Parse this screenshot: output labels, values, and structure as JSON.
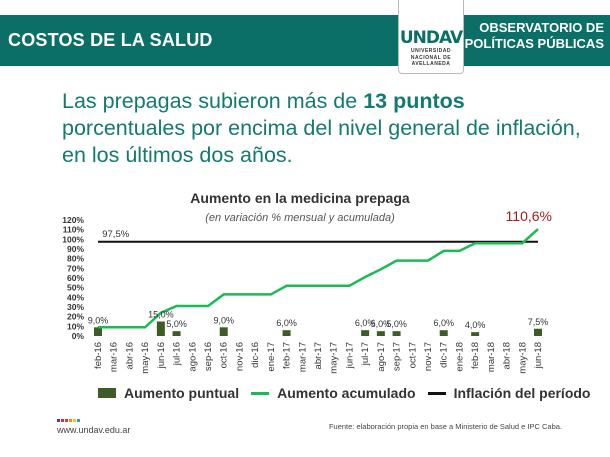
{
  "header": {
    "section": "COSTOS DE LA SALUD",
    "observatory_line1": "OBSERVATORIO DE",
    "observatory_line2": "POLÍTICAS PÚBLICAS",
    "logo_mark": "UNDAV",
    "logo_sub1": "UNIVERSIDAD",
    "logo_sub2": "NACIONAL DE",
    "logo_sub3": "AVELLANEDA"
  },
  "headline": {
    "before": "Las prepagas subieron más de ",
    "bold": "13 puntos",
    "after": " porcentuales por encima del nivel general de inflación, en los últimos dos años."
  },
  "chart_data": {
    "type": "bar+line",
    "title": "Aumento en la medicina prepaga",
    "subtitle": "(en variación % mensual y acumulada)",
    "categories": [
      "feb-16",
      "mar-16",
      "abr-16",
      "may-16",
      "jun-16",
      "jul-16",
      "ago-16",
      "sep-16",
      "oct-16",
      "nov-16",
      "dic-16",
      "ene-17",
      "feb-17",
      "mar-17",
      "abr-17",
      "may-17",
      "jun-17",
      "jul-17",
      "ago-17",
      "sep-17",
      "oct-17",
      "nov-17",
      "dic-17",
      "ene-18",
      "feb-18",
      "mar-18",
      "abr-18",
      "may-18",
      "jun-18"
    ],
    "yticks": [
      "0%",
      "10%",
      "20%",
      "30%",
      "40%",
      "50%",
      "60%",
      "70%",
      "80%",
      "90%",
      "100%",
      "110%",
      "120%"
    ],
    "ylim": [
      0,
      120
    ],
    "series": [
      {
        "name": "Aumento puntual",
        "type": "bar",
        "color": "#3e5c25",
        "values": [
          9,
          0,
          0,
          0,
          15,
          5,
          0,
          0,
          9,
          0,
          0,
          0,
          6,
          0,
          0,
          0,
          0,
          6,
          5,
          5,
          0,
          0,
          6,
          0,
          4,
          0,
          0,
          0,
          7.5
        ],
        "labels": [
          "9,0%",
          "",
          "",
          "",
          "15,0%",
          "5,0%",
          "",
          "",
          "9,0%",
          "",
          "",
          "",
          "6,0%",
          "",
          "",
          "",
          "",
          "6,0%",
          "5,0%",
          "5,0%",
          "",
          "",
          "6,0%",
          "",
          "4,0%",
          "",
          "",
          "",
          "7,5%"
        ]
      },
      {
        "name": "Aumento acumulado",
        "type": "line",
        "color": "#1db954",
        "values": [
          9,
          9,
          9,
          9,
          24,
          31,
          31,
          31,
          43,
          43,
          43,
          43,
          52,
          52,
          52,
          52,
          52,
          61,
          69,
          78,
          78,
          78,
          88,
          88,
          96,
          96,
          96,
          96,
          110.6
        ],
        "end_label": "110,6%"
      },
      {
        "name": "Inflación del período",
        "type": "line",
        "color": "#111111",
        "value": 97.5,
        "label": "97,5%"
      }
    ],
    "end_label_color": "#a61c1c"
  },
  "footer": {
    "url": "www.undav.edu.ar",
    "source": "Fuente: elaboración propia en base a Ministerio de Salud e IPC Caba.",
    "dot_colors": [
      "#8e2a5a",
      "#b8336a",
      "#e0392b",
      "#f28c28",
      "#f6c026",
      "#2a9fd6"
    ]
  }
}
